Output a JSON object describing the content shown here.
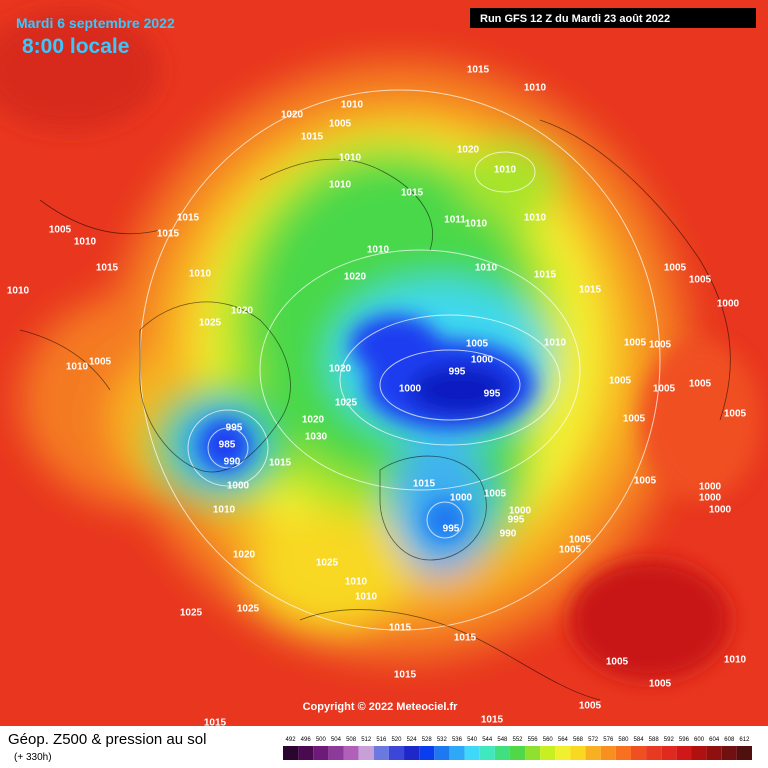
{
  "header": {
    "date": "Mardi 6 septembre 2022",
    "time": "8:00 locale",
    "run": "Run GFS 12 Z du Mardi 23 août 2022"
  },
  "copyright": "Copyright © 2022 Meteociel.fr",
  "footer": {
    "title": "Géop. Z500 & pression au sol",
    "lead_time": "(+ 330h)"
  },
  "legend": {
    "values": [
      492,
      496,
      500,
      504,
      508,
      512,
      516,
      520,
      524,
      528,
      532,
      536,
      540,
      544,
      548,
      552,
      556,
      560,
      564,
      568,
      572,
      576,
      580,
      584,
      588,
      592,
      596,
      600,
      604,
      608,
      612
    ],
    "colors": [
      "#2a0530",
      "#4a0a50",
      "#6e1a78",
      "#8e3a9a",
      "#b060b8",
      "#c8a0d8",
      "#6a78e0",
      "#3c46d8",
      "#1e28c8",
      "#0a3cf0",
      "#1e78f0",
      "#30a8f8",
      "#40d8f8",
      "#40e8c0",
      "#40e080",
      "#50d848",
      "#90e030",
      "#c8f020",
      "#f0f030",
      "#f8d820",
      "#f8b020",
      "#f89020",
      "#f87020",
      "#f05020",
      "#e83a20",
      "#e02a20",
      "#d01818",
      "#b01010",
      "#901010",
      "#701010",
      "#501010"
    ]
  },
  "isobar_labels": [
    1015,
    1010,
    1010,
    1020,
    1005,
    1015,
    1020,
    1010,
    1010,
    1010,
    1015,
    1015,
    1005,
    1015,
    1010,
    1011,
    1010,
    1010,
    1010,
    1010,
    1015,
    1015,
    1010,
    1020,
    1005,
    1005,
    1015,
    1010,
    1020,
    1000,
    1025,
    1005,
    1010,
    1005,
    1005,
    1000,
    1005,
    1010,
    1020,
    995,
    1005,
    1005,
    1005,
    1000,
    995,
    1025,
    1005,
    1005,
    995,
    1020,
    985,
    1030,
    990,
    1015,
    1015,
    1000,
    1000,
    1005,
    1005,
    1000,
    1000,
    1000,
    1010,
    1000,
    995,
    995,
    990,
    1005,
    1005,
    1020,
    1025,
    1010,
    1010,
    1025,
    1025,
    1015,
    1015,
    1010,
    1005,
    1005,
    1015,
    1005,
    1015,
    1015
  ]
}
